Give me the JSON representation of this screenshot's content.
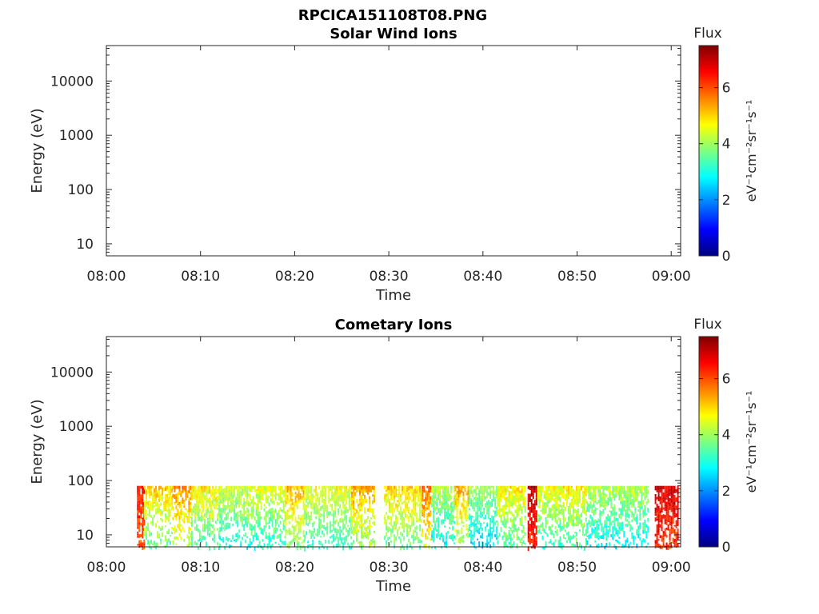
{
  "figure_title": "RPCICA151108T08.PNG",
  "colormap": [
    "#00007f",
    "#0000ff",
    "#007fff",
    "#00ffff",
    "#7fff7f",
    "#ffff00",
    "#ff7f00",
    "#ff0000",
    "#7f0000"
  ],
  "chart_data": [
    {
      "type": "heatmap",
      "title": "Solar Wind Ions",
      "xlabel": "Time",
      "ylabel": "Energy (eV)",
      "x_range": [
        "08:00",
        "09:01"
      ],
      "x_ticks": [
        "08:00",
        "08:10",
        "08:20",
        "08:30",
        "08:40",
        "08:50",
        "09:00"
      ],
      "y_scale": "log",
      "y_range": [
        6,
        45000
      ],
      "y_ticks": [
        "10",
        "100",
        "1000",
        "10000"
      ],
      "colorbar": {
        "label": "Flux",
        "unit": "eV⁻¹cm⁻²sr⁻¹s⁻¹",
        "range": [
          0,
          7.5
        ],
        "ticks": [
          "0",
          "2",
          "4",
          "6"
        ]
      },
      "segments": []
    },
    {
      "type": "heatmap",
      "title": "Cometary Ions",
      "xlabel": "Time",
      "ylabel": "Energy (eV)",
      "x_range": [
        "08:00",
        "09:01"
      ],
      "x_ticks": [
        "08:00",
        "08:10",
        "08:20",
        "08:30",
        "08:40",
        "08:50",
        "09:00"
      ],
      "y_scale": "log",
      "y_range": [
        6,
        45000
      ],
      "y_ticks": [
        "10",
        "100",
        "1000",
        "10000"
      ],
      "colorbar": {
        "label": "Flux",
        "unit": "eV⁻¹cm⁻²sr⁻¹s⁻¹",
        "range": [
          0,
          7.5
        ],
        "ticks": [
          "0",
          "2",
          "4",
          "6"
        ]
      },
      "energy_band_eV": [
        6,
        80
      ],
      "segments": [
        {
          "start": "08:03:15",
          "end": "08:04:00",
          "flux": 6.5
        },
        {
          "start": "08:04:00",
          "end": "08:07:00",
          "flux": 5.0
        },
        {
          "start": "08:07:00",
          "end": "08:09:00",
          "flux": 5.5
        },
        {
          "start": "08:09:00",
          "end": "08:12:00",
          "flux": 4.8
        },
        {
          "start": "08:12:00",
          "end": "08:15:00",
          "flux": 4.4
        },
        {
          "start": "08:15:00",
          "end": "08:19:00",
          "flux": 4.5
        },
        {
          "start": "08:19:00",
          "end": "08:21:00",
          "flux": 5.2
        },
        {
          "start": "08:21:00",
          "end": "08:26:00",
          "flux": 4.6
        },
        {
          "start": "08:26:00",
          "end": "08:28:30",
          "flux": 5.3
        },
        {
          "start": "08:29:30",
          "end": "08:33:30",
          "flux": 5.0
        },
        {
          "start": "08:33:30",
          "end": "08:34:30",
          "flux": 5.8
        },
        {
          "start": "08:34:30",
          "end": "08:37:00",
          "flux": 4.2
        },
        {
          "start": "08:37:00",
          "end": "08:38:30",
          "flux": 5.3
        },
        {
          "start": "08:38:30",
          "end": "08:41:30",
          "flux": 4.0
        },
        {
          "start": "08:41:30",
          "end": "08:44:30",
          "flux": 4.8
        },
        {
          "start": "08:44:45",
          "end": "08:45:45",
          "flux": 7.0
        },
        {
          "start": "08:45:45",
          "end": "08:48:30",
          "flux": 4.6
        },
        {
          "start": "08:48:30",
          "end": "08:51:00",
          "flux": 4.8
        },
        {
          "start": "08:51:00",
          "end": "08:57:30",
          "flux": 4.2
        },
        {
          "start": "08:58:15",
          "end": "09:00:45",
          "flux": 6.8
        }
      ]
    }
  ]
}
